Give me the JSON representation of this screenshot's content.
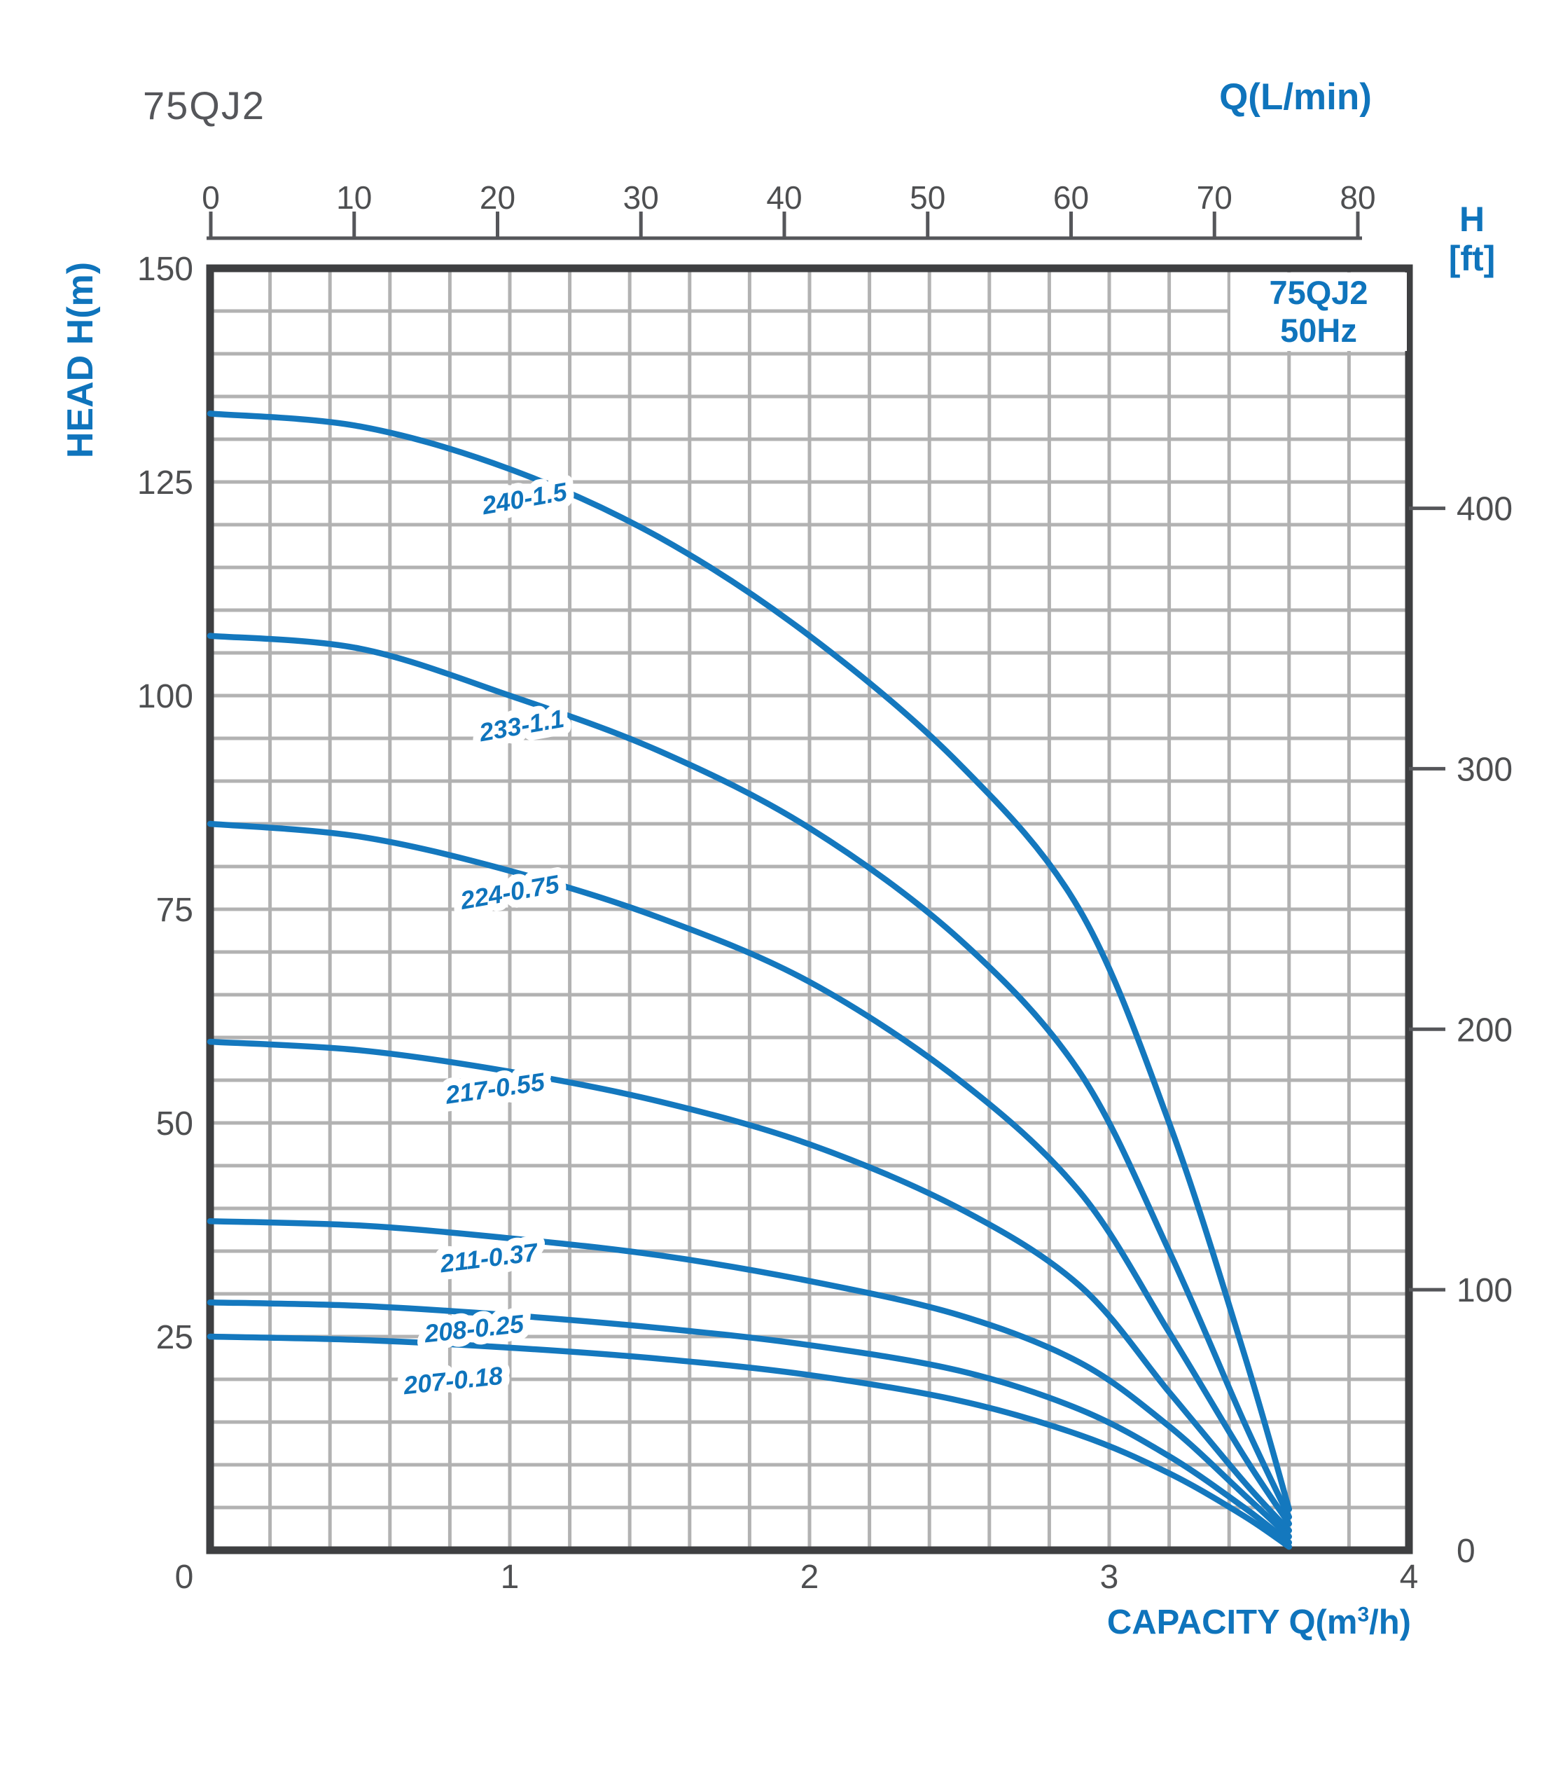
{
  "title": "75QJ2",
  "legend": {
    "line1": "75QJ2",
    "line2": "50Hz"
  },
  "top_axis": {
    "label": "Q(L/min)",
    "ticks": [
      0,
      10,
      20,
      30,
      40,
      50,
      60,
      70,
      80
    ]
  },
  "left_axis": {
    "label": "HEAD H(m)",
    "ticks": [
      150,
      125,
      100,
      75,
      50,
      25
    ]
  },
  "right_axis": {
    "label_line1": "H",
    "label_line2": "[ft]",
    "ticks": [
      400,
      300,
      200,
      100,
      0
    ]
  },
  "bottom_axis": {
    "label_prefix": "CAPACITY Q(m",
    "label_sup": "3",
    "label_suffix": "/h)",
    "ticks": [
      0,
      1,
      2,
      3,
      4
    ]
  },
  "origin_label": "0",
  "colors": {
    "background": "#ffffff",
    "blue_text": "#0f74bc",
    "curve_blue": "#1478be",
    "title_gray": "#55565a",
    "tick_text_gray": "#4e4f51",
    "axis_line_gray": "#55565a",
    "grid_gray": "#b2b2b2",
    "border_dark": "#3e3f41"
  },
  "chart_data": {
    "type": "line",
    "title": "75QJ2 50Hz submersible pump performance curves",
    "xlabel": "CAPACITY Q(m3/h)",
    "ylabel": "HEAD H(m)",
    "x_range": [
      0,
      4
    ],
    "y_range": [
      0,
      150
    ],
    "top_axis_unit": "Q(L/min)",
    "top_axis_range": [
      0,
      80
    ],
    "right_axis_unit": "H [ft]",
    "right_axis_ticks": [
      400,
      300,
      200,
      100,
      0
    ],
    "grid": "minor grid 0.2 m3/h horizontal, 5 m vertical, gridlines on",
    "legend_position": "top-right inside plot",
    "x": [
      0,
      0.5,
      1,
      1.5,
      2,
      2.5,
      2.9,
      3.2,
      3.45,
      3.6
    ],
    "series": [
      {
        "name": "240-1.5",
        "values": [
          133,
          131.5,
          126.5,
          118.5,
          107,
          92,
          75,
          50,
          23,
          4.8
        ],
        "label_q": 1.05,
        "label_h": 123,
        "label_angle": -10
      },
      {
        "name": "233-1.1",
        "values": [
          107,
          105.5,
          100,
          93.5,
          84.5,
          71.5,
          56,
          35,
          15,
          3.9
        ],
        "label_q": 1.04,
        "label_h": 96.5,
        "label_angle": -10
      },
      {
        "name": "224-0.75",
        "values": [
          85,
          83.5,
          79.5,
          74,
          66.5,
          55,
          42,
          25.5,
          11,
          3.1
        ],
        "label_q": 1.0,
        "label_h": 77,
        "label_angle": -10
      },
      {
        "name": "217-0.55",
        "values": [
          59.5,
          58.5,
          56,
          52.5,
          47.5,
          40,
          31,
          18.5,
          8,
          2.3
        ],
        "label_q": 0.95,
        "label_h": 54,
        "label_angle": -8
      },
      {
        "name": "211-0.37",
        "values": [
          38.5,
          38,
          36.5,
          34.5,
          31.5,
          27.5,
          22,
          14.5,
          6.5,
          1.6
        ],
        "label_q": 0.93,
        "label_h": 34.2,
        "label_angle": -7
      },
      {
        "name": "208-0.25",
        "values": [
          29,
          28.6,
          27.5,
          26,
          24,
          21,
          16.5,
          11,
          5,
          0.9
        ],
        "label_q": 0.88,
        "label_h": 25.9,
        "label_angle": -6
      },
      {
        "name": "207-0.18",
        "values": [
          25,
          24.6,
          23.7,
          22.4,
          20.5,
          17.5,
          13.5,
          9,
          4,
          0.4
        ],
        "label_q": 0.81,
        "label_h": 19.8,
        "label_angle": -6
      }
    ]
  }
}
